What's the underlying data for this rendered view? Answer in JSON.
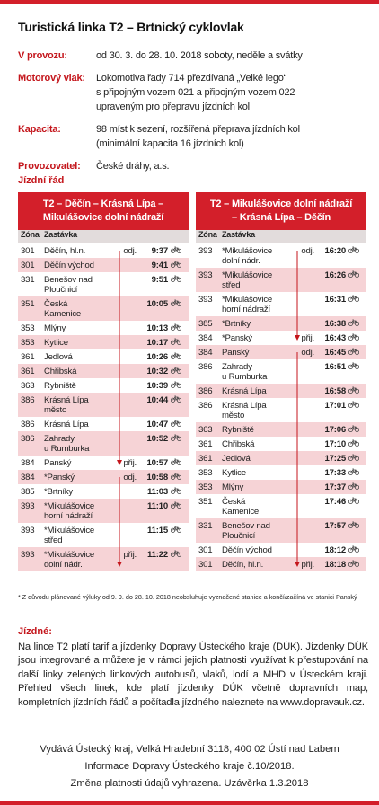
{
  "header": {
    "title": "Turistická linka T2 – Brtnický cyklovlak"
  },
  "info": [
    {
      "label": "V provozu:",
      "lines": [
        "od 30. 3. do 28. 10. 2018 soboty, neděle a svátky"
      ]
    },
    {
      "label": "Motorový vlak:",
      "lines": [
        "Lokomotiva řady 714 přezdívaná „Velké lego“",
        "s připojným vozem 021 a připojným vozem 022",
        "upraveným pro přepravu jízdních kol"
      ]
    },
    {
      "label": "Kapacita:",
      "lines": [
        "98 míst k sezení, rozšířená přeprava jízdních kol",
        "(minimální kapacita 16 jízdních kol)"
      ]
    },
    {
      "label": "Provozovatel:",
      "lines": [
        "České dráhy, a.s."
      ]
    }
  ],
  "timetable_heading": "Jízdní řád",
  "tables": [
    {
      "title": [
        "T2 – Děčín – Krásná Lípa –",
        "Mikulášovice dolní nádraží"
      ],
      "columns": [
        "Zóna",
        "Zastávka"
      ],
      "rows": [
        {
          "zone": 301,
          "station": "Děčín, hl.n.",
          "note": "odj.",
          "time": "9:37"
        },
        {
          "zone": 301,
          "station": "Děčín východ",
          "time": "9:41"
        },
        {
          "zone": 331,
          "station": "Benešov nad\nPloučnicí",
          "time": "9:51"
        },
        {
          "zone": 351,
          "station": "Česká\nKamenice",
          "time": "10:05"
        },
        {
          "zone": 353,
          "station": "Mlýny",
          "time": "10:13"
        },
        {
          "zone": 353,
          "station": "Kytlice",
          "time": "10:17"
        },
        {
          "zone": 361,
          "station": "Jedlová",
          "time": "10:26"
        },
        {
          "zone": 361,
          "station": "Chřibská",
          "time": "10:32"
        },
        {
          "zone": 363,
          "station": "Rybniště",
          "time": "10:39"
        },
        {
          "zone": 386,
          "station": "Krásná Lípa\nměsto",
          "time": "10:44"
        },
        {
          "zone": 386,
          "station": "Krásná Lípa",
          "time": "10:47"
        },
        {
          "zone": 386,
          "station": "Zahrady\nu Rumburka",
          "time": "10:52"
        },
        {
          "zone": 384,
          "station": "Panský",
          "note": "přij.",
          "time": "10:57"
        },
        {
          "zone": 384,
          "station": "*Panský",
          "note": "odj.",
          "time": "10:58"
        },
        {
          "zone": 385,
          "station": "*Brtníky",
          "time": "11:03"
        },
        {
          "zone": 393,
          "station": "*Mikulášovice\nhorní nádraží",
          "time": "11:10"
        },
        {
          "zone": 393,
          "station": "*Mikulášovice\nstřed",
          "time": "11:15"
        },
        {
          "zone": 393,
          "station": "*Mikulášovice\ndolní nádr.",
          "note": "přij.",
          "time": "11:22"
        }
      ]
    },
    {
      "title": [
        "T2 – Mikulášovice dolní nádraží",
        "– Krásná Lípa – Děčín"
      ],
      "columns": [
        "Zóna",
        "Zastávka"
      ],
      "rows": [
        {
          "zone": 393,
          "station": "*Mikulášovice\ndolní nádr.",
          "note": "odj.",
          "time": "16:20"
        },
        {
          "zone": 393,
          "station": "*Mikulášovice\nstřed",
          "time": "16:26"
        },
        {
          "zone": 393,
          "station": "*Mikulášovice\nhorní nádraží",
          "time": "16:31"
        },
        {
          "zone": 385,
          "station": "*Brtníky",
          "time": "16:38"
        },
        {
          "zone": 384,
          "station": "*Panský",
          "note": "přij.",
          "time": "16:43"
        },
        {
          "zone": 384,
          "station": "Panský",
          "note": "odj.",
          "time": "16:45"
        },
        {
          "zone": 386,
          "station": "Zahrady\nu Rumburka",
          "time": "16:51"
        },
        {
          "zone": 386,
          "station": "Krásná Lípa",
          "time": "16:58"
        },
        {
          "zone": 386,
          "station": "Krásná Lípa\nměsto",
          "time": "17:01"
        },
        {
          "zone": 363,
          "station": "Rybniště",
          "time": "17:06"
        },
        {
          "zone": 361,
          "station": "Chřibská",
          "time": "17:10"
        },
        {
          "zone": 361,
          "station": "Jedlová",
          "time": "17:25"
        },
        {
          "zone": 353,
          "station": "Kytlice",
          "time": "17:33"
        },
        {
          "zone": 353,
          "station": "Mlýny",
          "time": "17:37"
        },
        {
          "zone": 351,
          "station": "Česká\nKamenice",
          "time": "17:46"
        },
        {
          "zone": 331,
          "station": "Benešov nad\nPloučnicí",
          "time": "17:57"
        },
        {
          "zone": 301,
          "station": "Děčín východ",
          "time": "18:12"
        },
        {
          "zone": 301,
          "station": "Děčín, hl.n.",
          "note": "přij.",
          "time": "18:18"
        }
      ]
    }
  ],
  "footnote": "* Z důvodu plánované výluky od 9. 9. do 28. 10. 2018 neobsluhuje vyznačené stanice a končí/začíná ve stanici Panský",
  "fare": {
    "heading": "Jízdné:",
    "text": "Na lince T2 platí tarif a jízdenky Dopravy Ústeckého kraje (DÚK). Jízdenky DÚK jsou integrované a můžete je v rámci jejich platnosti využívat k přestupování na další linky zelených linkových autobusů, vlaků, lodí a MHD v Ústeckém kraji. Přehled všech linek, kde platí jízdenky DÚK včetně dopravních map, kompletních jízdních řádů a počítadla jízdného naleznete na www.dopravauk.cz."
  },
  "footer": [
    "Vydává Ústecký kraj, Velká Hradební 3118, 400 02 Ústí nad Labem",
    "Informace Dopravy Ústeckého kraje č.10/2018.",
    "Změna platnosti údajů vyhrazena. Uzávěrka 1.3.2018"
  ]
}
